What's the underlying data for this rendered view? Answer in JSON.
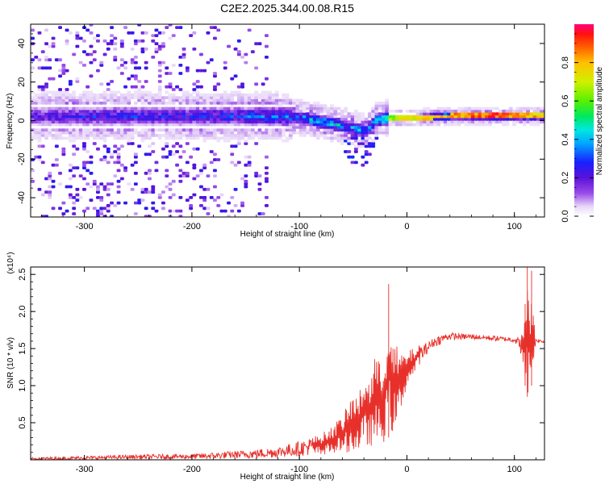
{
  "figure": {
    "title": "C2E2.2025.344.00.08.R15"
  },
  "chart_data": [
    {
      "type": "heatmap",
      "title": "C2E2.2025.344.00.08.R15",
      "xlabel": "Height of straight line (km)",
      "ylabel": "Frequency (Hz)",
      "xlim": [
        -350,
        128
      ],
      "ylim": [
        -50,
        50
      ],
      "xticks": [
        -300,
        -200,
        -100,
        0,
        100
      ],
      "yticks": [
        -40,
        -20,
        0,
        20,
        40
      ],
      "colorbar": {
        "label": "Normalized spectral amplitude",
        "range": [
          0,
          1
        ],
        "ticks": [
          "0.0",
          "0.2",
          "0.4",
          "0.6",
          "0.8"
        ],
        "colormap": "rainbow"
      },
      "ridge": {
        "description": "main spectral energy band near 0 Hz",
        "x": [
          -345,
          -300,
          -250,
          -200,
          -150,
          -120,
          -100,
          -80,
          -60,
          -40,
          -30,
          -20,
          0,
          40,
          80,
          110,
          128
        ],
        "center_hz": [
          2,
          2,
          2,
          2,
          2,
          2,
          1,
          -1,
          -3,
          -6,
          0,
          1,
          1,
          2,
          2,
          2,
          2
        ],
        "amplitude": [
          0.25,
          0.3,
          0.3,
          0.3,
          0.35,
          0.4,
          0.45,
          0.5,
          0.45,
          0.4,
          0.5,
          0.65,
          0.75,
          0.85,
          0.95,
          0.85,
          0.8
        ]
      }
    },
    {
      "type": "line",
      "xlabel": "Height of straight line (km)",
      "ylabel": "SNR (10 * v/v)",
      "y_multiplier": "(x10⁴)",
      "xlim": [
        -350,
        128
      ],
      "ylim": [
        0,
        2.6
      ],
      "xticks": [
        -300,
        -200,
        -100,
        0,
        100
      ],
      "yticks": [
        "0.5",
        "1.0",
        "1.5",
        "2.0",
        "2.5"
      ],
      "series": [
        {
          "name": "SNR",
          "color": "#e8302b",
          "x": [
            -350,
            -300,
            -250,
            -200,
            -180,
            -160,
            -140,
            -120,
            -100,
            -90,
            -80,
            -70,
            -60,
            -50,
            -45,
            -40,
            -35,
            -30,
            -25,
            -20,
            -17,
            -15,
            -10,
            -5,
            0,
            5,
            10,
            15,
            20,
            25,
            30,
            35,
            40,
            50,
            60,
            70,
            80,
            90,
            100,
            105,
            108,
            110,
            112,
            114,
            116,
            118,
            120,
            128
          ],
          "envelope_max": [
            0.03,
            0.05,
            0.07,
            0.08,
            0.1,
            0.12,
            0.14,
            0.18,
            0.25,
            0.3,
            0.35,
            0.45,
            0.6,
            0.9,
            0.85,
            1.2,
            1.1,
            1.45,
            1.3,
            1.5,
            2.37,
            1.6,
            1.55,
            1.45,
            1.45,
            1.5,
            1.55,
            1.55,
            1.6,
            1.65,
            1.68,
            1.7,
            1.72,
            1.7,
            1.7,
            1.68,
            1.68,
            1.66,
            1.66,
            1.65,
            1.75,
            2.1,
            2.6,
            2.1,
            2.55,
            1.9,
            1.65,
            1.6
          ],
          "envelope_min": [
            0.0,
            0.0,
            0.01,
            0.01,
            0.01,
            0.02,
            0.02,
            0.03,
            0.05,
            0.06,
            0.06,
            0.08,
            0.1,
            0.1,
            0.12,
            0.15,
            0.18,
            0.2,
            0.2,
            0.25,
            0.3,
            0.35,
            0.4,
            0.7,
            1.0,
            1.1,
            1.25,
            1.35,
            1.45,
            1.52,
            1.55,
            1.6,
            1.62,
            1.62,
            1.62,
            1.62,
            1.6,
            1.6,
            1.58,
            1.5,
            1.25,
            1.0,
            0.85,
            0.9,
            1.0,
            1.35,
            1.58,
            1.58
          ]
        }
      ]
    }
  ]
}
